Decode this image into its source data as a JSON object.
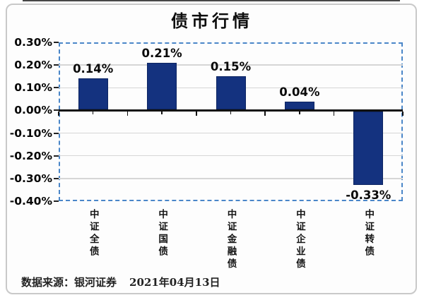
{
  "header": {
    "title": "债市行情"
  },
  "footer": {
    "source": "数据来源：银河证券",
    "date": "2021年04月13日"
  },
  "chart_data": {
    "type": "bar",
    "title": "债市行情",
    "categories": [
      "中证全债",
      "中证国债",
      "中证金融债",
      "中证企业债",
      "中证转债"
    ],
    "values": [
      0.14,
      0.21,
      0.15,
      0.04,
      -0.33
    ],
    "value_labels": [
      "0.14%",
      "0.21%",
      "0.15%",
      "0.04%",
      "-0.33%"
    ],
    "xlabel": "",
    "ylabel": "",
    "ylim": [
      -0.4,
      0.3
    ],
    "ytick_step": 0.1,
    "ytick_labels": [
      "0.30%",
      "0.20%",
      "0.10%",
      "0.00%",
      "-0.10%",
      "-0.20%",
      "-0.30%",
      "-0.40%"
    ],
    "grid": true,
    "legend": "none",
    "bar_orientation": "vertical",
    "colors": {
      "bar": "#14327f",
      "bar_border": "#0d2562",
      "plot_border": "#4a86c8",
      "gridline": "#d6d6d6",
      "axis": "#111111"
    }
  }
}
